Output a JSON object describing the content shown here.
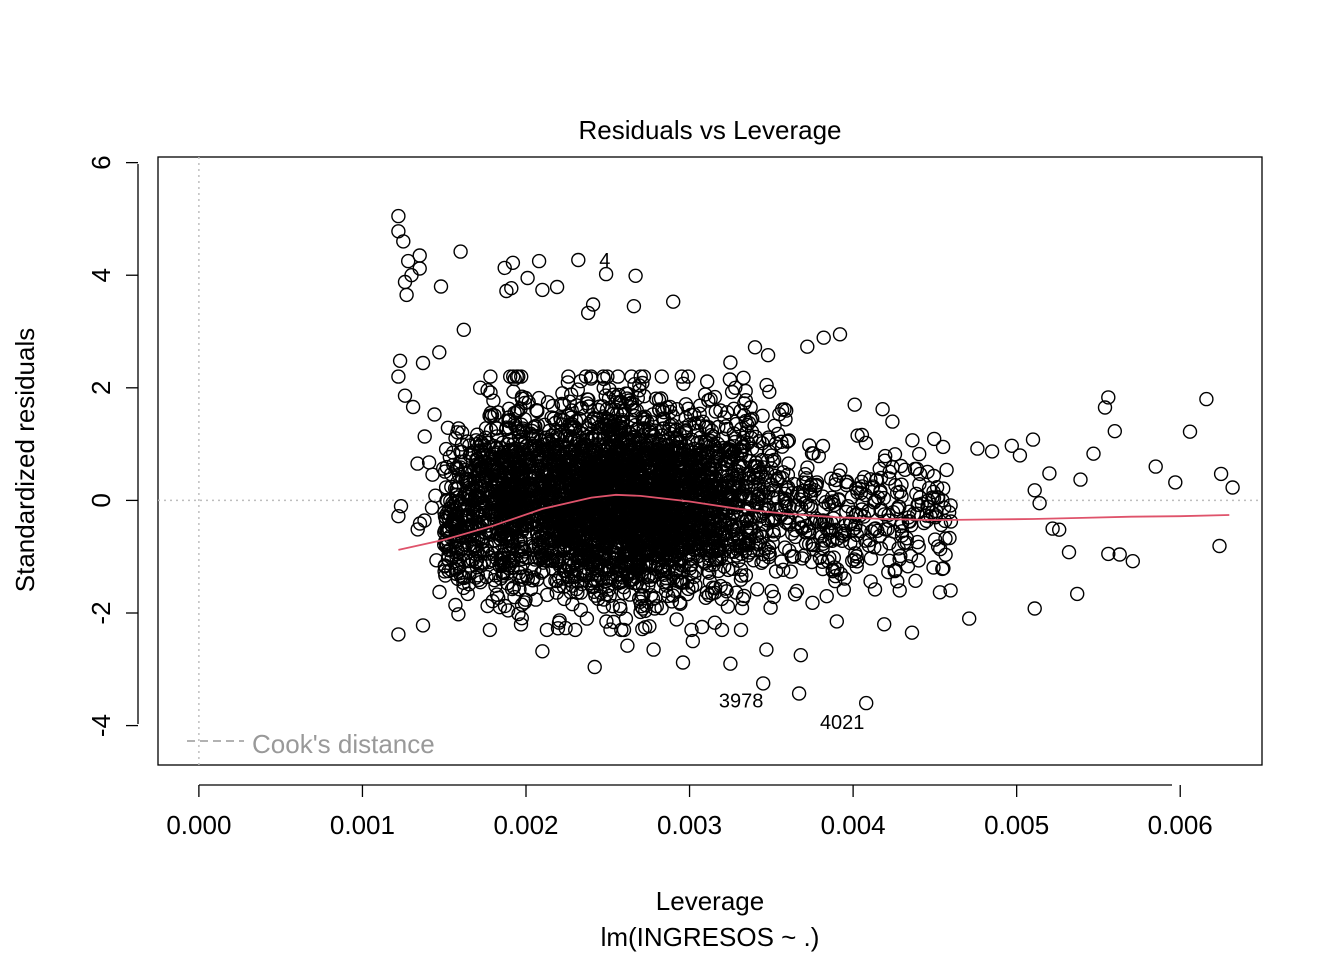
{
  "chart_data": {
    "type": "scatter",
    "title": "Residuals vs Leverage",
    "xlabel": "Leverage",
    "subtitle": "lm(INGRESOS ~ .)",
    "ylabel": "Standardized residuals",
    "xlim": [
      -0.00025,
      0.0065
    ],
    "ylim": [
      -4.7,
      6.1
    ],
    "x_ticks": [
      "0.000",
      "0.001",
      "0.002",
      "0.003",
      "0.004",
      "0.005",
      "0.006"
    ],
    "x_tick_values": [
      0,
      0.001,
      0.002,
      0.003,
      0.004,
      0.005,
      0.006
    ],
    "y_ticks": [
      "-4",
      "-2",
      "0",
      "2",
      "4",
      "6"
    ],
    "y_tick_values": [
      -4,
      -2,
      0,
      2,
      4,
      6
    ],
    "legend": {
      "label": "Cook's distance",
      "placement": "bottom-left"
    },
    "reference_lines": {
      "x": 0,
      "y": 0
    },
    "colors": {
      "points": "#000000",
      "smooth": "#DF536B",
      "reference": "#BEBEBE",
      "legend_text": "#999999"
    },
    "labeled_points": [
      {
        "label": "4",
        "x": 0.00235,
        "y": 4.25
      },
      {
        "label": "3978",
        "x": 0.00345,
        "y": -3.25
      },
      {
        "label": "4021",
        "x": 0.00408,
        "y": -3.6
      }
    ],
    "highlight_points": [
      {
        "x": 0.00122,
        "y": 5.05
      },
      {
        "x": 0.00122,
        "y": 4.78
      },
      {
        "x": 0.00125,
        "y": 4.6
      },
      {
        "x": 0.00128,
        "y": 4.25
      },
      {
        "x": 0.00135,
        "y": 4.35
      },
      {
        "x": 0.00135,
        "y": 4.12
      },
      {
        "x": 0.00126,
        "y": 3.88
      },
      {
        "x": 0.0013,
        "y": 4.0
      },
      {
        "x": 0.00127,
        "y": 3.65
      },
      {
        "x": 0.00148,
        "y": 3.8
      },
      {
        "x": 0.0016,
        "y": 4.42
      },
      {
        "x": 0.00162,
        "y": 3.03
      },
      {
        "x": 0.00187,
        "y": 4.13
      },
      {
        "x": 0.00192,
        "y": 4.22
      },
      {
        "x": 0.00208,
        "y": 4.25
      },
      {
        "x": 0.00201,
        "y": 3.95
      },
      {
        "x": 0.00188,
        "y": 3.72
      },
      {
        "x": 0.00191,
        "y": 3.77
      },
      {
        "x": 0.0021,
        "y": 3.74
      },
      {
        "x": 0.00219,
        "y": 3.79
      },
      {
        "x": 0.00232,
        "y": 4.27
      },
      {
        "x": 0.00249,
        "y": 4.02
      },
      {
        "x": 0.00267,
        "y": 3.99
      },
      {
        "x": 0.0029,
        "y": 3.53
      },
      {
        "x": 0.00266,
        "y": 3.45
      },
      {
        "x": 0.00241,
        "y": 3.48
      },
      {
        "x": 0.00238,
        "y": 3.33
      },
      {
        "x": 0.00325,
        "y": 2.45
      },
      {
        "x": 0.0034,
        "y": 2.72
      },
      {
        "x": 0.00348,
        "y": 2.58
      },
      {
        "x": 0.00372,
        "y": 2.73
      },
      {
        "x": 0.00382,
        "y": 2.89
      },
      {
        "x": 0.00392,
        "y": 2.95
      },
      {
        "x": 0.00147,
        "y": 2.63
      },
      {
        "x": 0.00122,
        "y": 2.2
      },
      {
        "x": 0.00123,
        "y": 2.48
      },
      {
        "x": 0.00137,
        "y": 2.44
      },
      {
        "x": 0.00126,
        "y": 1.86
      },
      {
        "x": 0.00131,
        "y": 1.66
      },
      {
        "x": 0.00401,
        "y": 1.7
      },
      {
        "x": 0.00418,
        "y": 1.62
      },
      {
        "x": 0.00424,
        "y": 1.4
      },
      {
        "x": 0.00455,
        "y": 0.95
      },
      {
        "x": 0.00476,
        "y": 0.92
      },
      {
        "x": 0.00485,
        "y": 0.87
      },
      {
        "x": 0.00497,
        "y": 0.97
      },
      {
        "x": 0.00502,
        "y": 0.8
      },
      {
        "x": 0.0051,
        "y": 1.08
      },
      {
        "x": 0.0052,
        "y": 0.48
      },
      {
        "x": 0.00511,
        "y": 0.18
      },
      {
        "x": 0.00514,
        "y": -0.05
      },
      {
        "x": 0.00539,
        "y": 0.37
      },
      {
        "x": 0.00547,
        "y": 0.83
      },
      {
        "x": 0.00554,
        "y": 1.65
      },
      {
        "x": 0.00556,
        "y": 1.83
      },
      {
        "x": 0.0056,
        "y": 1.23
      },
      {
        "x": 0.00585,
        "y": 0.6
      },
      {
        "x": 0.00597,
        "y": 0.32
      },
      {
        "x": 0.00606,
        "y": 1.22
      },
      {
        "x": 0.00616,
        "y": 1.8
      },
      {
        "x": 0.00625,
        "y": 0.47
      },
      {
        "x": 0.00632,
        "y": 0.23
      },
      {
        "x": 0.00624,
        "y": -0.81
      },
      {
        "x": 0.00522,
        "y": -0.5
      },
      {
        "x": 0.00526,
        "y": -0.52
      },
      {
        "x": 0.00532,
        "y": -0.92
      },
      {
        "x": 0.00556,
        "y": -0.95
      },
      {
        "x": 0.00563,
        "y": -0.96
      },
      {
        "x": 0.00571,
        "y": -1.08
      },
      {
        "x": 0.00537,
        "y": -1.66
      },
      {
        "x": 0.00511,
        "y": -1.92
      },
      {
        "x": 0.00471,
        "y": -2.1
      },
      {
        "x": 0.00436,
        "y": -2.35
      },
      {
        "x": 0.00419,
        "y": -2.2
      },
      {
        "x": 0.0039,
        "y": -2.15
      },
      {
        "x": 0.00368,
        "y": -2.75
      },
      {
        "x": 0.00347,
        "y": -2.65
      },
      {
        "x": 0.00325,
        "y": -2.9
      },
      {
        "x": 0.00296,
        "y": -2.88
      },
      {
        "x": 0.00302,
        "y": -2.5
      },
      {
        "x": 0.00278,
        "y": -2.65
      },
      {
        "x": 0.00262,
        "y": -2.58
      },
      {
        "x": 0.00242,
        "y": -2.96
      },
      {
        "x": 0.0021,
        "y": -2.68
      },
      {
        "x": 0.00122,
        "y": -2.38
      },
      {
        "x": 0.00137,
        "y": -2.22
      },
      {
        "x": 0.00367,
        "y": -3.43
      },
      {
        "x": 0.00345,
        "y": -3.25
      },
      {
        "x": 0.00408,
        "y": -3.6
      }
    ],
    "smooth_line": {
      "x": [
        0.00122,
        0.0015,
        0.0018,
        0.0021,
        0.0024,
        0.00255,
        0.0027,
        0.003,
        0.0033,
        0.0036,
        0.0039,
        0.0042,
        0.0045,
        0.0048,
        0.0051,
        0.0054,
        0.0057,
        0.006,
        0.0063
      ],
      "y": [
        -0.88,
        -0.7,
        -0.45,
        -0.15,
        0.05,
        0.1,
        0.08,
        -0.02,
        -0.15,
        -0.24,
        -0.3,
        -0.33,
        -0.35,
        -0.34,
        -0.33,
        -0.31,
        -0.29,
        -0.28,
        -0.26
      ]
    },
    "point_cloud": {
      "count": 4100,
      "x_range": [
        0.00122,
        0.0063
      ],
      "y_range": [
        -3.6,
        5.05
      ],
      "center_x": 0.0026,
      "center_y": 0.0
    }
  }
}
